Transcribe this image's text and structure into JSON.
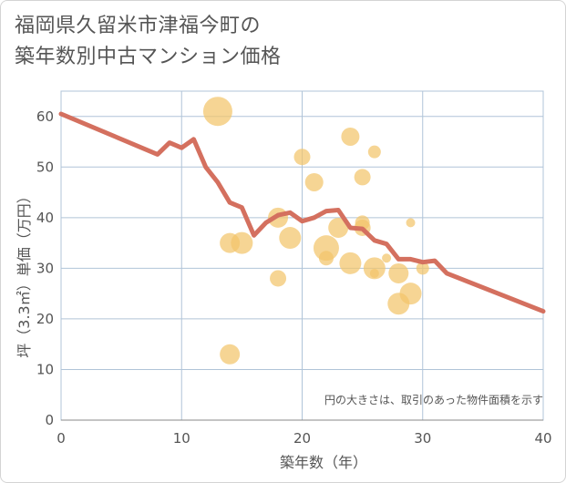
{
  "title_line1": "福岡県久留米市津福今町の",
  "title_line2": "築年数別中古マンション価格",
  "colors": {
    "line": "#d4705f",
    "bubble": "#f2c56b",
    "grid": "#b0c4d8",
    "text": "#555555"
  },
  "chart_data": {
    "type": "scatter",
    "title": "福岡県久留米市津福今町の築年数別中古マンション価格",
    "xlabel": "築年数（年）",
    "ylabel": "坪（3.3㎡）単価（万円）",
    "xlim": [
      0,
      40
    ],
    "ylim": [
      0,
      65
    ],
    "x_ticks": [
      0,
      10,
      20,
      30,
      40
    ],
    "y_ticks": [
      0,
      10,
      20,
      30,
      40,
      50,
      60
    ],
    "grid": true,
    "note": "円の大きさは、取引のあった物件面積を示す",
    "series": [
      {
        "kind": "bubbles",
        "points": [
          {
            "x": 13,
            "y": 61,
            "size": 16
          },
          {
            "x": 14,
            "y": 13,
            "size": 11
          },
          {
            "x": 14,
            "y": 35,
            "size": 11
          },
          {
            "x": 15,
            "y": 35,
            "size": 12
          },
          {
            "x": 18,
            "y": 40,
            "size": 11
          },
          {
            "x": 18,
            "y": 28,
            "size": 9
          },
          {
            "x": 19,
            "y": 36,
            "size": 12
          },
          {
            "x": 20,
            "y": 52,
            "size": 9
          },
          {
            "x": 21,
            "y": 47,
            "size": 10
          },
          {
            "x": 22,
            "y": 34,
            "size": 14
          },
          {
            "x": 22,
            "y": 32,
            "size": 8
          },
          {
            "x": 23,
            "y": 38,
            "size": 11
          },
          {
            "x": 24,
            "y": 56,
            "size": 10
          },
          {
            "x": 24,
            "y": 31,
            "size": 12
          },
          {
            "x": 25,
            "y": 48,
            "size": 9
          },
          {
            "x": 25,
            "y": 39,
            "size": 8
          },
          {
            "x": 25,
            "y": 38,
            "size": 9
          },
          {
            "x": 26,
            "y": 53,
            "size": 7
          },
          {
            "x": 26,
            "y": 30,
            "size": 12
          },
          {
            "x": 26,
            "y": 29,
            "size": 5
          },
          {
            "x": 27,
            "y": 32,
            "size": 5
          },
          {
            "x": 28,
            "y": 29,
            "size": 11
          },
          {
            "x": 28,
            "y": 23,
            "size": 12
          },
          {
            "x": 29,
            "y": 25,
            "size": 12
          },
          {
            "x": 29,
            "y": 39,
            "size": 5
          },
          {
            "x": 30,
            "y": 30,
            "size": 7
          }
        ]
      },
      {
        "kind": "line",
        "points": [
          [
            0,
            60.5
          ],
          [
            8,
            52.5
          ],
          [
            9,
            54.8
          ],
          [
            10,
            53.8
          ],
          [
            11,
            55.5
          ],
          [
            12,
            50
          ],
          [
            13,
            47
          ],
          [
            14,
            43
          ],
          [
            15,
            42
          ],
          [
            16,
            36.5
          ],
          [
            17,
            39
          ],
          [
            18,
            40.5
          ],
          [
            19,
            41
          ],
          [
            20,
            39.3
          ],
          [
            21,
            40
          ],
          [
            22,
            41.3
          ],
          [
            23,
            41.5
          ],
          [
            24,
            38
          ],
          [
            25,
            37.8
          ],
          [
            26,
            35.5
          ],
          [
            27,
            34.8
          ],
          [
            28,
            31.8
          ],
          [
            29,
            31.8
          ],
          [
            30,
            31.2
          ],
          [
            31,
            31.5
          ],
          [
            32,
            29
          ],
          [
            40,
            21.5
          ]
        ]
      }
    ]
  }
}
